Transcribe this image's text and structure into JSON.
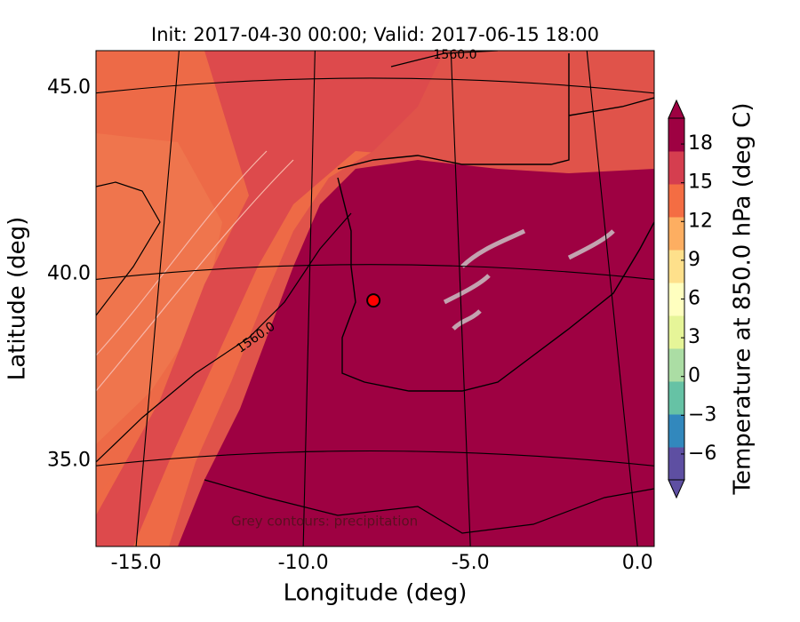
{
  "chart_data": {
    "type": "map",
    "title": "Init: 2017-04-30 00:00; Valid: 2017-06-15 18:00",
    "x_label": "Longitude (deg)",
    "y_label": "Latitude (deg)",
    "xlim": [
      -16.2,
      0.5
    ],
    "ylim": [
      32.7,
      46.0
    ],
    "xticks": [
      {
        "value": -15,
        "label": "-15.0"
      },
      {
        "value": -10,
        "label": "-10.0"
      },
      {
        "value": -5,
        "label": "-5.0"
      },
      {
        "value": 0,
        "label": "0.0"
      }
    ],
    "yticks": [
      {
        "value": 35,
        "label": "35.0"
      },
      {
        "value": 40,
        "label": "40.0"
      },
      {
        "value": 45,
        "label": "45.0"
      }
    ],
    "grid": true,
    "contour_labels": [
      "1560.0",
      "1560.0"
    ],
    "annotation": "Grey contours: precipitation",
    "marker": {
      "lon": -7.9,
      "lat": 39.3,
      "color": "#ff0000"
    },
    "colorbar": {
      "label": "Temperature at 850.0 hPa (deg C)",
      "lim": [
        -8,
        20
      ],
      "ticks": [
        {
          "value": -6,
          "label": "−6"
        },
        {
          "value": -3,
          "label": "−3"
        },
        0,
        3,
        6,
        9,
        12,
        15,
        18
      ],
      "colors": [
        "#5e4fa2",
        "#3288bd",
        "#66c2a5",
        "#abdda4",
        "#e6f598",
        "#ffffbf",
        "#fee08b",
        "#fdae61",
        "#f46d43",
        "#d53e4f",
        "#9e0142"
      ]
    }
  }
}
